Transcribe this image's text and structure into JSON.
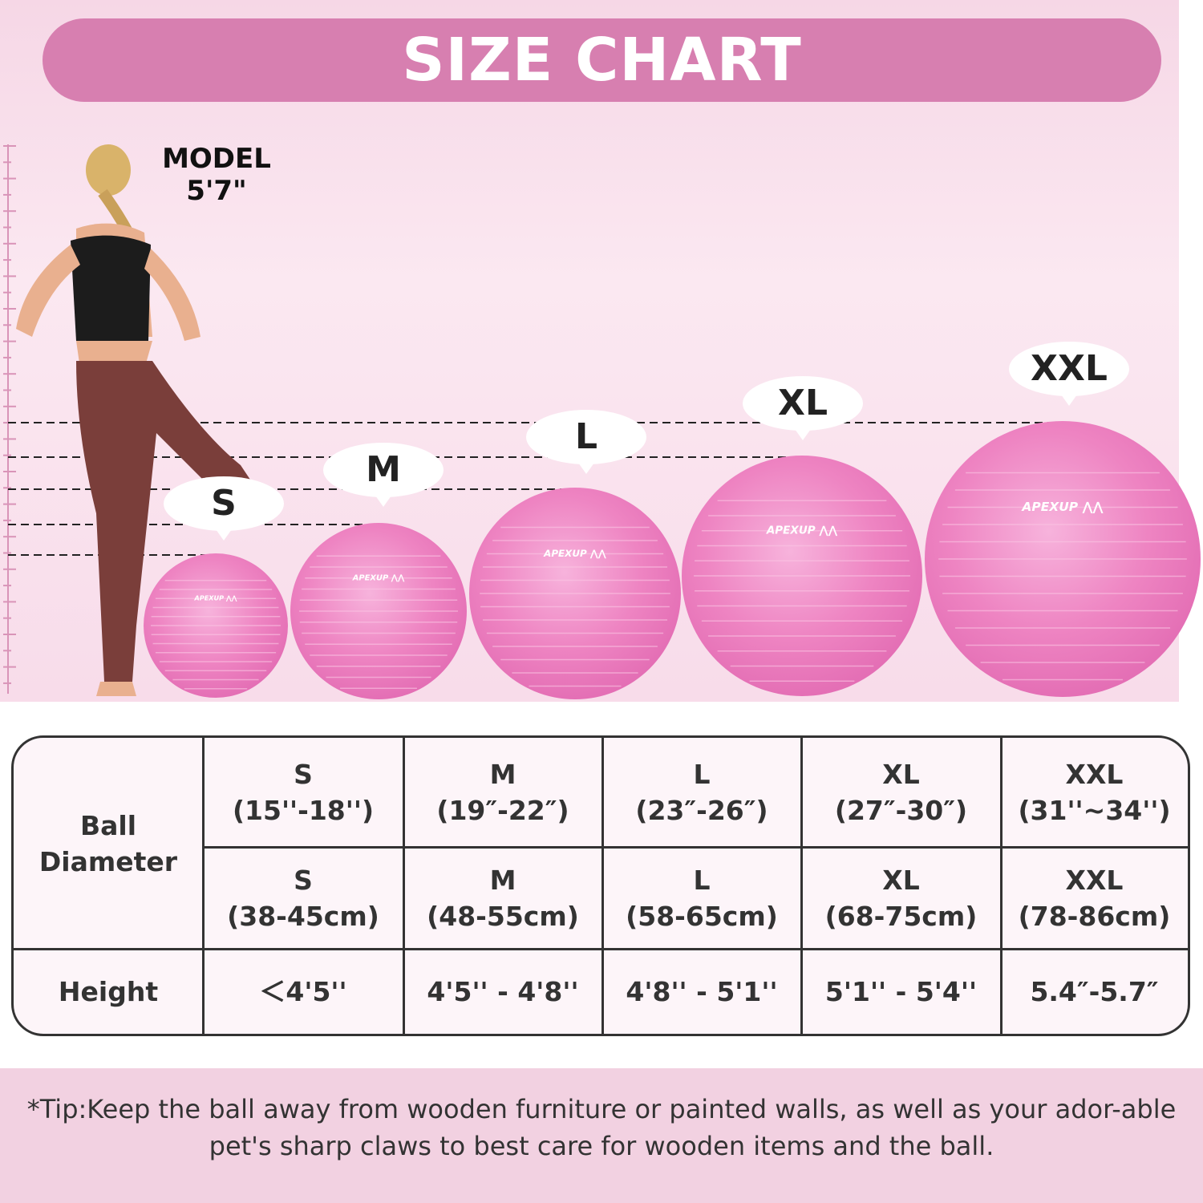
{
  "title": "SIZE CHART",
  "model": {
    "line1": "MODEL",
    "line2": "5'7\""
  },
  "brand": "APEXUP",
  "colors": {
    "banner": "#d77fb0",
    "ball": "#f08cc8",
    "tip_band": "#f2d1e1"
  },
  "sizes": [
    "S",
    "M",
    "L",
    "XL",
    "XXL"
  ],
  "table": {
    "row_label_diameter": "Ball Diameter",
    "row_label_height": "Height",
    "inches": [
      {
        "size": "S",
        "value": "(15''-18'')"
      },
      {
        "size": "M",
        "value": "(19″-22″)"
      },
      {
        "size": "L",
        "value": "(23″-26″)"
      },
      {
        "size": "XL",
        "value": "(27″-30″)"
      },
      {
        "size": "XXL",
        "value": "(31''~34'')"
      }
    ],
    "cm": [
      {
        "size": "S",
        "value": "(38-45cm)"
      },
      {
        "size": "M",
        "value": "(48-55cm)"
      },
      {
        "size": "L",
        "value": "(58-65cm)"
      },
      {
        "size": "XL",
        "value": "(68-75cm)"
      },
      {
        "size": "XXL",
        "value": "(78-86cm)"
      }
    ],
    "heights": [
      "＜4'5''",
      "4'5'' - 4'8''",
      "4'8'' - 5'1''",
      "5'1'' - 5'4''",
      "5.4″-5.7″"
    ]
  },
  "tip": "*Tip:Keep the ball away from wooden furniture or painted walls, as well as your ador-able pet's sharp claws to best care for wooden items and the ball."
}
